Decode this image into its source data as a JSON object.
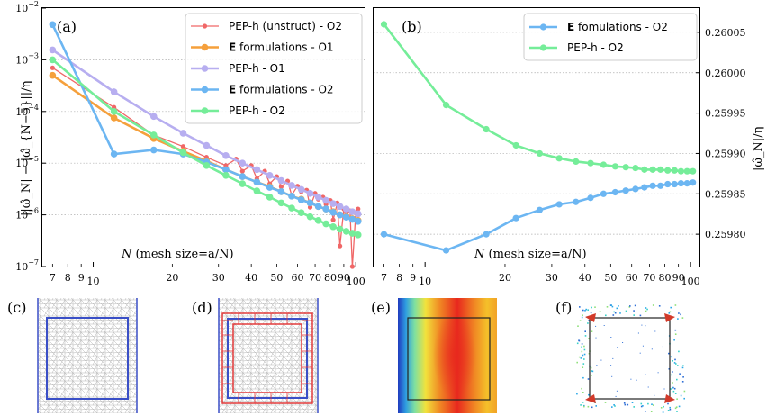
{
  "figure": {
    "panel_labels": [
      "(a)",
      "(b)",
      "(c)",
      "(d)",
      "(e)",
      "(f)"
    ],
    "colors": {
      "pep_unstruct": "#f06767",
      "e_o1": "#f5a03c",
      "pep_o1": "#b7aef0",
      "e_o2": "#6cb6f2",
      "pep_o2": "#75ed99",
      "mesh_gray": "#b0b0b0",
      "square_blue": "#3a4fc7",
      "square_red": "#e23b3b"
    }
  },
  "chart_data": [
    {
      "type": "line",
      "panel": "(a)",
      "xscale": "log",
      "yscale": "log",
      "xlim": [
        6.4,
        108
      ],
      "ylim": [
        1e-07,
        0.01
      ],
      "xlabel": "N (mesh size=a/N)",
      "ylabel": "||ω̂_N| − |ω̂_{N−5}||/η",
      "xticks_major": [
        {
          "v": 10,
          "t": "10"
        },
        {
          "v": 100,
          "t": "100"
        }
      ],
      "xticks_minor": [
        {
          "v": 7,
          "t": "7"
        },
        {
          "v": 8,
          "t": "8"
        },
        {
          "v": 9,
          "t": "9"
        },
        {
          "v": 20,
          "t": "20"
        },
        {
          "v": 30,
          "t": "30"
        },
        {
          "v": 40,
          "t": "40"
        },
        {
          "v": 50,
          "t": "50"
        },
        {
          "v": 60,
          "t": "60"
        },
        {
          "v": 70,
          "t": "70"
        },
        {
          "v": 80,
          "t": "80"
        },
        {
          "v": 90,
          "t": "90"
        }
      ],
      "yticks": [
        {
          "e": -7,
          "t": "10",
          "s": "−7"
        },
        {
          "e": -6,
          "t": "10",
          "s": "−6"
        },
        {
          "e": -5,
          "t": "10",
          "s": "−5"
        },
        {
          "e": -4,
          "t": "10",
          "s": "−4"
        },
        {
          "e": -3,
          "t": "10",
          "s": "−3"
        },
        {
          "e": -2,
          "t": "10",
          "s": "−2"
        }
      ],
      "series": [
        {
          "name": "PEP-h (unstruct) - O2",
          "color": "#f06767",
          "width": 1.3,
          "r": 2.6,
          "x": [
            7,
            12,
            17,
            22,
            27,
            32,
            35,
            37,
            40,
            42,
            45,
            47,
            50,
            52,
            55,
            57,
            60,
            62,
            65,
            67,
            70,
            72,
            75,
            77,
            80,
            82,
            85,
            87,
            90,
            92,
            95,
            97,
            100,
            102
          ],
          "y": [
            0.0007,
            0.00012,
            3.5e-05,
            2.1e-05,
            1.3e-05,
            9e-06,
            1.2e-05,
            7e-06,
            9e-06,
            5e-06,
            7e-06,
            4e-06,
            5.5e-06,
            3.5e-06,
            4.5e-06,
            2.4e-06,
            3.6e-06,
            2.8e-06,
            3e-06,
            1.4e-06,
            2.6e-06,
            2e-06,
            2.2e-06,
            1.6e-06,
            1.9e-06,
            8e-07,
            1.7e-06,
            2.5e-07,
            1.3e-06,
            1.1e-06,
            1.2e-06,
            1e-07,
            1.1e-06,
            1.3e-06
          ]
        },
        {
          "name": "E formulations - O1",
          "color": "#f5a03c",
          "width": 2.6,
          "r": 3.8,
          "x": [
            7,
            12,
            17,
            22,
            27,
            32,
            37,
            42,
            47,
            52,
            57,
            62,
            67,
            72,
            77,
            82,
            87,
            92,
            97,
            102
          ],
          "y": [
            0.0005,
            7.5e-05,
            3e-05,
            1.7e-05,
            1.1e-05,
            7.5e-06,
            5.5e-06,
            4.3e-06,
            3.5e-06,
            2.8e-06,
            2.3e-06,
            2e-06,
            1.7e-06,
            1.45e-06,
            1.3e-06,
            1.15e-06,
            1e-06,
            9.2e-07,
            8.4e-07,
            7.8e-07
          ]
        },
        {
          "name": "PEP-h - O1",
          "color": "#b7aef0",
          "width": 2.6,
          "r": 3.8,
          "x": [
            7,
            12,
            17,
            22,
            27,
            32,
            37,
            42,
            47,
            52,
            57,
            62,
            67,
            72,
            77,
            82,
            87,
            92,
            97,
            102
          ],
          "y": [
            0.00155,
            0.00024,
            8e-05,
            3.8e-05,
            2.2e-05,
            1.4e-05,
            1e-05,
            7.5e-06,
            5.8e-06,
            4.6e-06,
            3.7e-06,
            3.1e-06,
            2.6e-06,
            2.2e-06,
            1.9e-06,
            1.65e-06,
            1.45e-06,
            1.3e-06,
            1.15e-06,
            1.05e-06
          ]
        },
        {
          "name": "E formulations - O2",
          "color": "#6cb6f2",
          "width": 2.6,
          "r": 3.8,
          "x": [
            7,
            12,
            17,
            22,
            27,
            32,
            37,
            42,
            47,
            52,
            57,
            62,
            67,
            72,
            77,
            82,
            87,
            92,
            97,
            102
          ],
          "y": [
            0.0048,
            1.5e-05,
            1.8e-05,
            1.5e-05,
            1.05e-05,
            7.5e-06,
            5.5e-06,
            4.3e-06,
            3.4e-06,
            2.8e-06,
            2.3e-06,
            1.95e-06,
            1.7e-06,
            1.45e-06,
            1.3e-06,
            1.12e-06,
            1e-06,
            9e-07,
            8.2e-07,
            7.5e-07
          ]
        },
        {
          "name": "PEP-h - O2",
          "color": "#75ed99",
          "width": 2.6,
          "r": 3.8,
          "x": [
            7,
            12,
            17,
            22,
            27,
            32,
            37,
            42,
            47,
            52,
            57,
            62,
            67,
            72,
            77,
            82,
            87,
            92,
            97,
            102
          ],
          "y": [
            0.001,
            0.0001,
            3.5e-05,
            1.6e-05,
            9e-06,
            5.8e-06,
            4e-06,
            2.9e-06,
            2.2e-06,
            1.7e-06,
            1.35e-06,
            1.1e-06,
            9.2e-07,
            7.8e-07,
            6.7e-07,
            5.9e-07,
            5.3e-07,
            4.8e-07,
            4.4e-07,
            4.1e-07
          ]
        }
      ],
      "legend": {
        "position": "top-right",
        "entries": [
          {
            "bold": "",
            "text": "PEP-h (unstruct) - O2",
            "series": 0
          },
          {
            "bold": "E",
            "text": " formulations - O1",
            "series": 1
          },
          {
            "bold": "",
            "text": "PEP-h                 - O1",
            "series": 2
          },
          {
            "bold": "E",
            "text": " formulations - O2",
            "series": 3
          },
          {
            "bold": "",
            "text": "PEP-h                 - O2",
            "series": 4
          }
        ]
      }
    },
    {
      "type": "line",
      "panel": "(b)",
      "xscale": "log",
      "yscale": "linear",
      "xlim": [
        6.4,
        108
      ],
      "ylim": [
        0.25976,
        0.26008
      ],
      "xlabel": "N (mesh size=a/N)",
      "ylabel": "|ω̂_N|/η",
      "yaxis_side": "right",
      "xticks_major": [
        {
          "v": 10,
          "t": "10"
        },
        {
          "v": 100,
          "t": "100"
        }
      ],
      "xticks_minor": [
        {
          "v": 7,
          "t": "7"
        },
        {
          "v": 8,
          "t": "8"
        },
        {
          "v": 9,
          "t": "9"
        },
        {
          "v": 20,
          "t": "20"
        },
        {
          "v": 30,
          "t": "30"
        },
        {
          "v": 40,
          "t": "40"
        },
        {
          "v": 50,
          "t": "50"
        },
        {
          "v": 60,
          "t": "60"
        },
        {
          "v": 70,
          "t": "70"
        },
        {
          "v": 80,
          "t": "80"
        },
        {
          "v": 90,
          "t": "90"
        }
      ],
      "yticks": [
        {
          "v": 0.2598,
          "t": "0.25980"
        },
        {
          "v": 0.25985,
          "t": "0.25985"
        },
        {
          "v": 0.2599,
          "t": "0.25990"
        },
        {
          "v": 0.25995,
          "t": "0.25995"
        },
        {
          "v": 0.26,
          "t": "0.26000"
        },
        {
          "v": 0.26005,
          "t": "0.26005"
        }
      ],
      "series": [
        {
          "name": "E fomulations - O2",
          "color": "#6cb6f2",
          "width": 2.6,
          "r": 3.6,
          "x": [
            7,
            12,
            17,
            22,
            27,
            32,
            37,
            42,
            47,
            52,
            57,
            62,
            67,
            72,
            77,
            82,
            87,
            92,
            97,
            102
          ],
          "y": [
            0.2598,
            0.25978,
            0.2598,
            0.25982,
            0.25983,
            0.259837,
            0.25984,
            0.259845,
            0.25985,
            0.259852,
            0.259854,
            0.259856,
            0.259858,
            0.25986,
            0.25986,
            0.259862,
            0.259862,
            0.259863,
            0.259863,
            0.259864
          ]
        },
        {
          "name": "PEP-h - O2",
          "color": "#75ed99",
          "width": 2.6,
          "r": 3.6,
          "x": [
            7,
            12,
            17,
            22,
            27,
            32,
            37,
            42,
            47,
            52,
            57,
            62,
            67,
            72,
            77,
            82,
            87,
            92,
            97,
            102
          ],
          "y": [
            0.26006,
            0.25996,
            0.25993,
            0.25991,
            0.2599,
            0.259894,
            0.25989,
            0.259888,
            0.259886,
            0.259884,
            0.259883,
            0.259882,
            0.25988,
            0.25988,
            0.25988,
            0.259879,
            0.259879,
            0.259878,
            0.259878,
            0.259878
          ]
        }
      ],
      "legend": {
        "position": "top-right",
        "entries": [
          {
            "bold": "E",
            "text": " fomulations - O2",
            "series": 0
          },
          {
            "bold": "",
            "text": "PEP-h                 - O2",
            "series": 1
          }
        ]
      }
    }
  ]
}
